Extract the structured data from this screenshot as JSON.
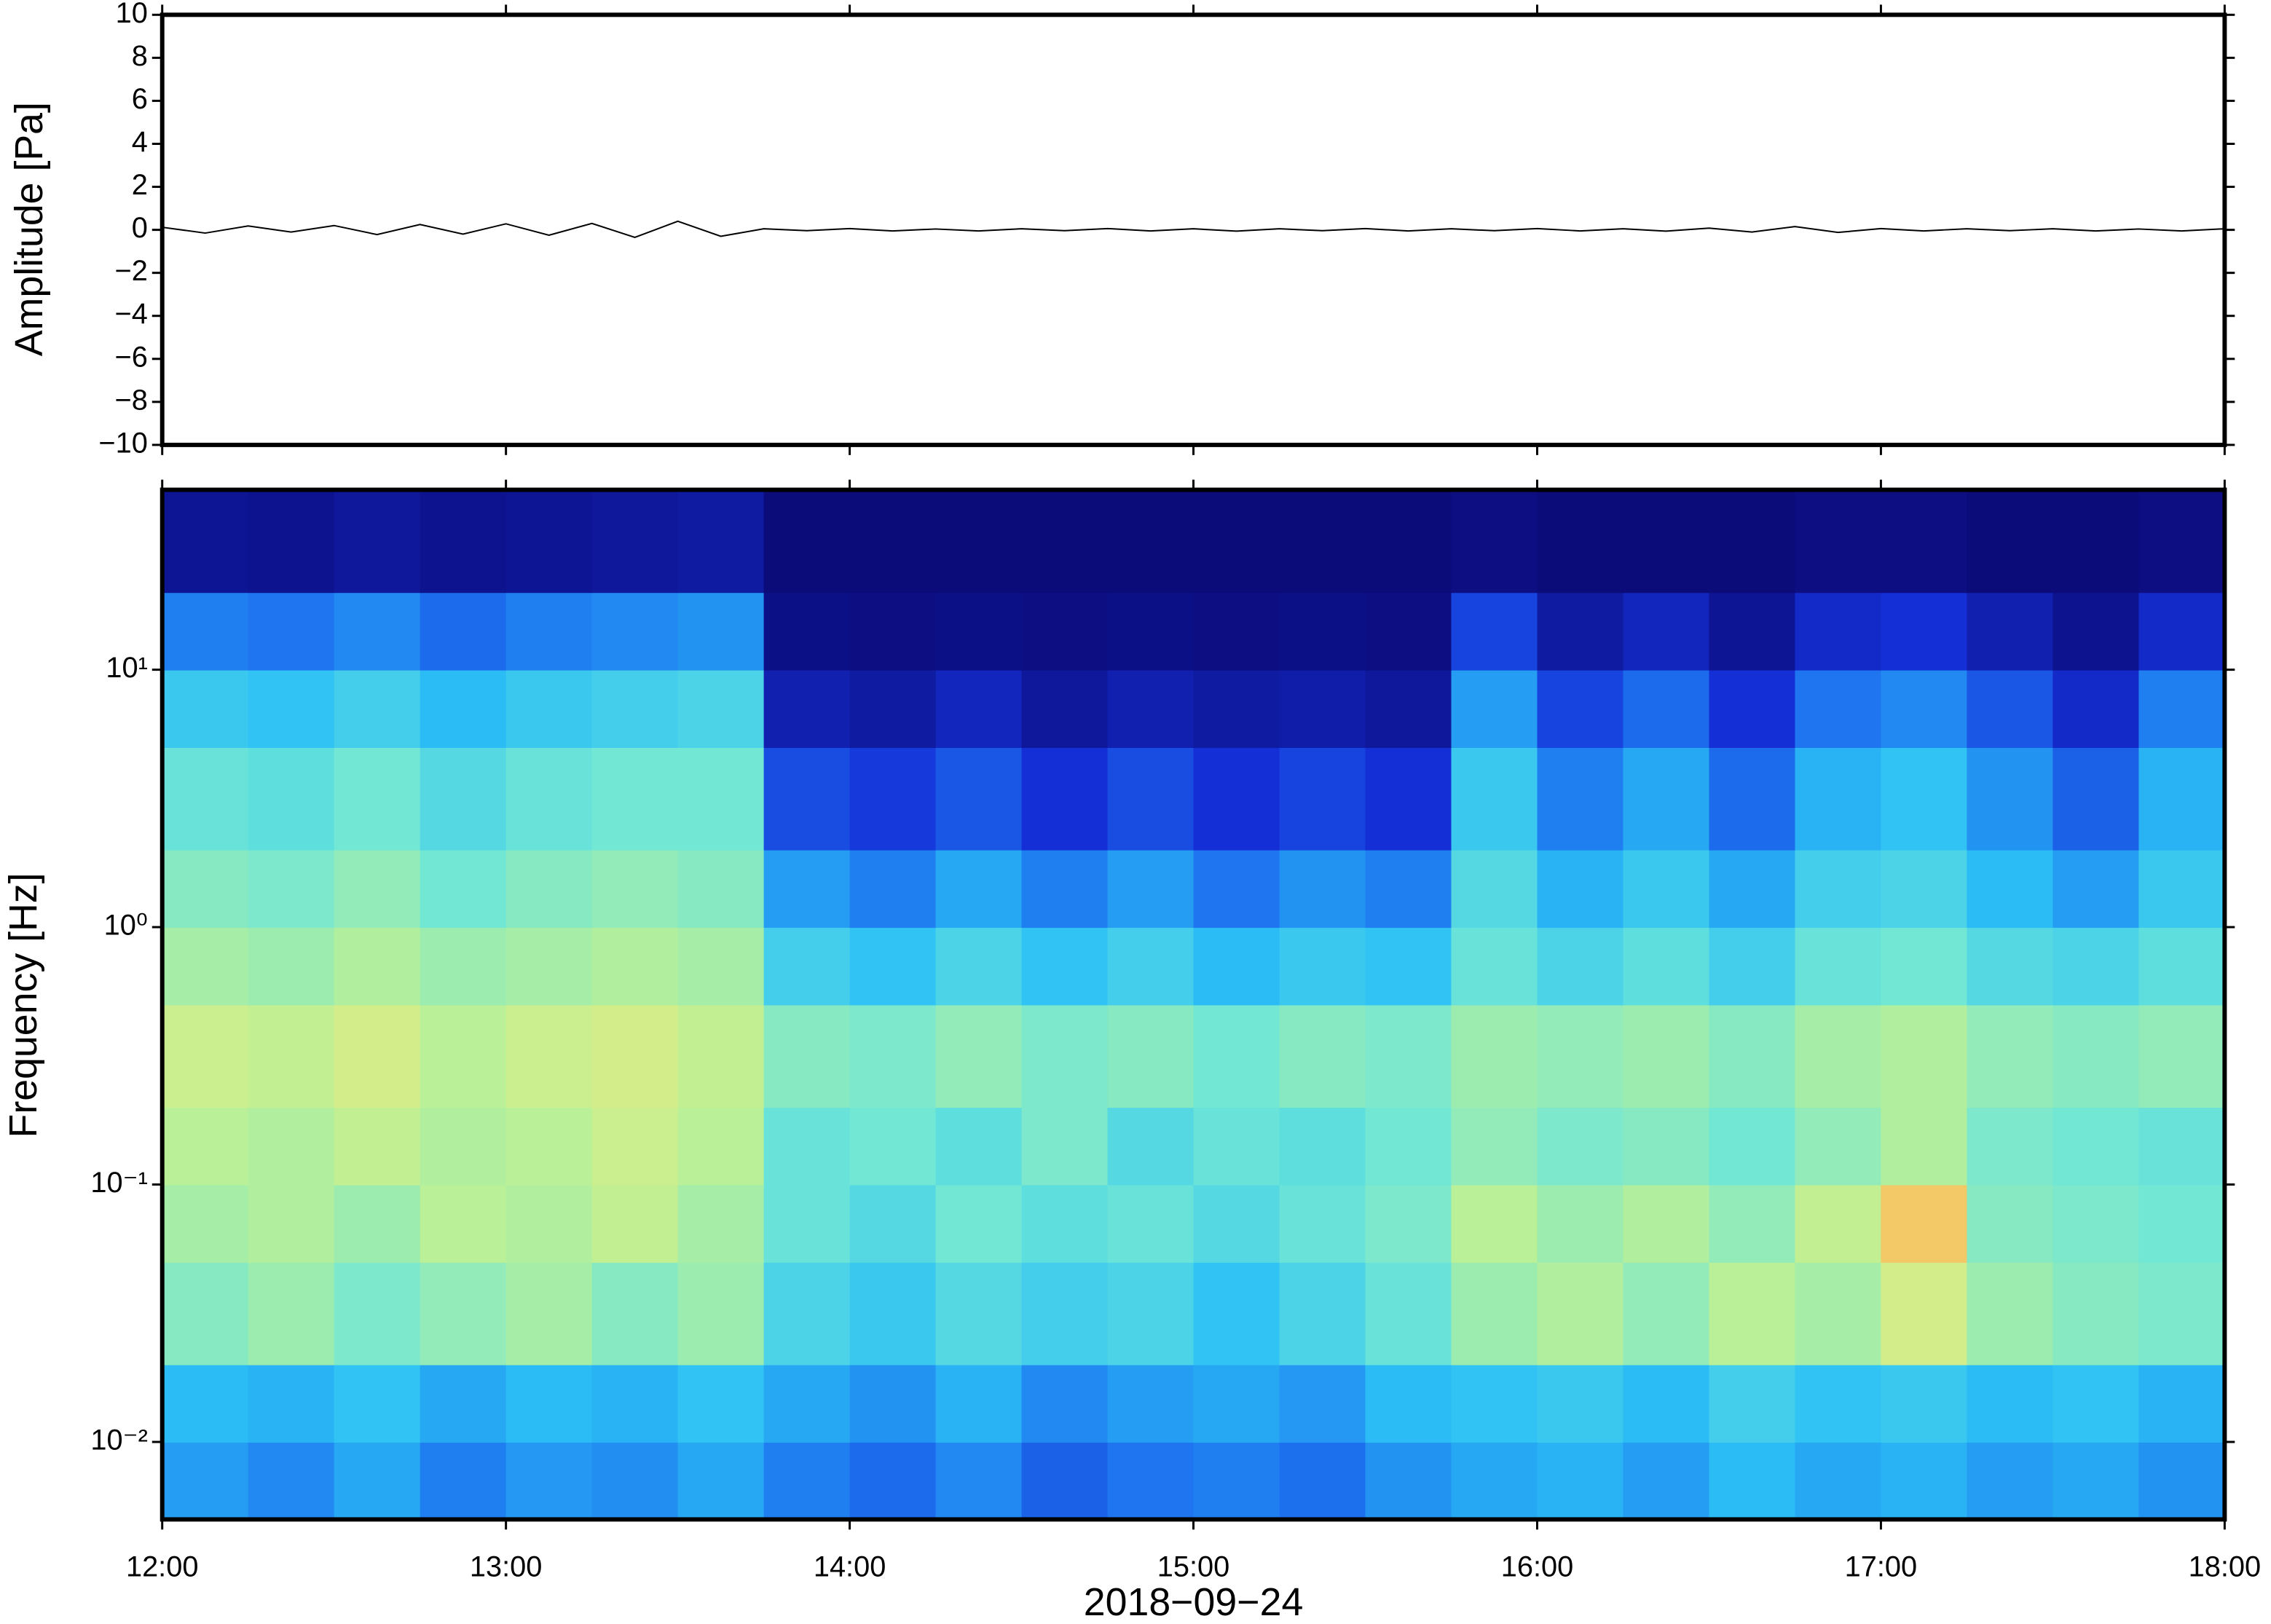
{
  "chart_data": [
    {
      "type": "line",
      "ylabel": "Amplitude [Pa]",
      "color": "#000000",
      "x": [
        12,
        12.125,
        12.25,
        12.375,
        12.5,
        12.625,
        12.75,
        12.875,
        13,
        13.125,
        13.25,
        13.375,
        13.5,
        13.625,
        13.75,
        13.875,
        14,
        14.125,
        14.25,
        14.375,
        14.5,
        14.625,
        14.75,
        14.875,
        15,
        15.125,
        15.25,
        15.375,
        15.5,
        15.625,
        15.75,
        15.875,
        16,
        16.125,
        16.25,
        16.375,
        16.5,
        16.625,
        16.75,
        16.875,
        17,
        17.125,
        17.25,
        17.375,
        17.5,
        17.625,
        17.75,
        17.875,
        18
      ],
      "values": [
        0.12,
        -0.15,
        0.18,
        -0.1,
        0.2,
        -0.22,
        0.25,
        -0.2,
        0.28,
        -0.25,
        0.3,
        -0.35,
        0.4,
        -0.3,
        0.05,
        -0.04,
        0.06,
        -0.05,
        0.04,
        -0.05,
        0.05,
        -0.04,
        0.06,
        -0.05,
        0.05,
        -0.06,
        0.05,
        -0.04,
        0.06,
        -0.05,
        0.05,
        -0.04,
        0.06,
        -0.05,
        0.05,
        -0.06,
        0.08,
        -0.1,
        0.15,
        -0.12,
        0.06,
        -0.05,
        0.05,
        -0.04,
        0.05,
        -0.05,
        0.04,
        -0.05,
        0.05
      ],
      "xlim": [
        12,
        18
      ],
      "ylim": [
        -10,
        10
      ],
      "yticks": [
        {
          "value": -10,
          "label": "−10"
        },
        {
          "value": -8,
          "label": "−8"
        },
        {
          "value": -6,
          "label": "−6"
        },
        {
          "value": -4,
          "label": "−4"
        },
        {
          "value": -2,
          "label": "−2"
        },
        0,
        2,
        4,
        6,
        8,
        10
      ]
    },
    {
      "type": "heatmap",
      "ylabel": "Frequency [Hz]",
      "xlabel": "2018−09−24",
      "x_edges": [
        12,
        12.25,
        12.5,
        12.75,
        13,
        13.25,
        13.5,
        13.75,
        14,
        14.25,
        14.5,
        14.75,
        15,
        15.25,
        15.5,
        15.75,
        16,
        16.25,
        16.5,
        16.75,
        17,
        17.25,
        17.5,
        17.75,
        18
      ],
      "y_edges": [
        0.005,
        0.01,
        0.02,
        0.05,
        0.1,
        0.2,
        0.5,
        1,
        2,
        5,
        10,
        20,
        50
      ],
      "z": [
        [
          36,
          32,
          38,
          30,
          35,
          33,
          38,
          30,
          26,
          32,
          24,
          28,
          30,
          27,
          34,
          38,
          40,
          36,
          42,
          38,
          40,
          36,
          38,
          34
        ],
        [
          42,
          40,
          44,
          38,
          42,
          40,
          44,
          38,
          34,
          40,
          32,
          36,
          38,
          35,
          42,
          44,
          46,
          42,
          48,
          44,
          46,
          42,
          44,
          40
        ],
        [
          62,
          66,
          60,
          64,
          68,
          62,
          66,
          50,
          46,
          52,
          48,
          50,
          44,
          50,
          56,
          66,
          70,
          64,
          72,
          68,
          78,
          66,
          62,
          60
        ],
        [
          68,
          70,
          66,
          72,
          70,
          74,
          68,
          56,
          52,
          58,
          54,
          56,
          52,
          56,
          60,
          72,
          66,
          70,
          64,
          74,
          90,
          62,
          60,
          58
        ],
        [
          72,
          70,
          74,
          70,
          72,
          76,
          72,
          56,
          58,
          54,
          60,
          52,
          56,
          54,
          58,
          64,
          60,
          62,
          58,
          64,
          70,
          60,
          58,
          56
        ],
        [
          76,
          74,
          78,
          72,
          76,
          78,
          74,
          62,
          60,
          64,
          60,
          62,
          58,
          62,
          60,
          66,
          64,
          66,
          62,
          68,
          70,
          64,
          62,
          64
        ],
        [
          68,
          66,
          70,
          66,
          68,
          70,
          68,
          48,
          44,
          50,
          44,
          48,
          42,
          46,
          44,
          56,
          50,
          54,
          48,
          56,
          58,
          52,
          50,
          54
        ],
        [
          62,
          60,
          64,
          58,
          62,
          64,
          62,
          36,
          30,
          38,
          30,
          36,
          28,
          34,
          30,
          52,
          40,
          46,
          38,
          48,
          50,
          42,
          36,
          46
        ],
        [
          56,
          54,
          58,
          52,
          56,
          58,
          58,
          20,
          16,
          22,
          14,
          20,
          14,
          18,
          14,
          46,
          30,
          38,
          26,
          40,
          44,
          34,
          24,
          40
        ],
        [
          46,
          44,
          48,
          42,
          46,
          48,
          50,
          8,
          6,
          10,
          5,
          8,
          6,
          7,
          5,
          36,
          18,
          26,
          14,
          28,
          32,
          22,
          12,
          30
        ],
        [
          30,
          28,
          32,
          26,
          30,
          32,
          34,
          2,
          1,
          2,
          1,
          2,
          1,
          2,
          1,
          18,
          6,
          10,
          4,
          12,
          14,
          8,
          3,
          12
        ],
        [
          4,
          3,
          5,
          3,
          4,
          5,
          6,
          0,
          0,
          0,
          0,
          0,
          0,
          0,
          0,
          1,
          0,
          0,
          0,
          1,
          1,
          0,
          0,
          1
        ]
      ],
      "zlim": [
        0,
        100
      ],
      "colormap": [
        "#0b0b7a",
        "#1530d8",
        "#1e78f0",
        "#2cc0f5",
        "#6ee6d8",
        "#b8f098",
        "#f4ea7c",
        "#f07a34"
      ],
      "xlim": [
        12,
        18
      ],
      "xticks": [
        {
          "value": 12,
          "label": "12:00"
        },
        {
          "value": 13,
          "label": "13:00"
        },
        {
          "value": 14,
          "label": "14:00"
        },
        {
          "value": 15,
          "label": "15:00"
        },
        {
          "value": 16,
          "label": "16:00"
        },
        {
          "value": 17,
          "label": "17:00"
        },
        {
          "value": 18,
          "label": "18:00"
        }
      ],
      "ylim": [
        0.005,
        50
      ],
      "ylog": true,
      "yticks": [
        {
          "value": 0.01,
          "label": "10⁻²"
        },
        {
          "value": 0.1,
          "label": "10⁻¹"
        },
        {
          "value": 1,
          "label": "10⁰"
        },
        {
          "value": 10,
          "label": "10¹"
        }
      ]
    }
  ]
}
